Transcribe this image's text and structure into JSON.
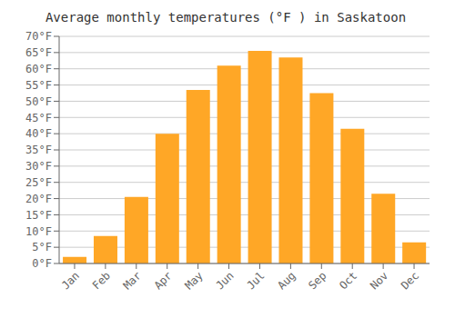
{
  "chart_data": {
    "type": "bar",
    "title": "Average monthly temperatures (°F ) in Saskatoon",
    "categories": [
      "Jan",
      "Feb",
      "Mar",
      "Apr",
      "May",
      "Jun",
      "Jul",
      "Aug",
      "Sep",
      "Oct",
      "Nov",
      "Dec"
    ],
    "values": [
      2,
      8.5,
      20.5,
      40,
      53.5,
      61,
      65.5,
      63.5,
      52.5,
      41.5,
      21.5,
      6.5
    ],
    "color": "#FFA726",
    "ylim": [
      0,
      70
    ],
    "yticks": [
      {
        "value": 0,
        "label": "0°F"
      },
      {
        "value": 5,
        "label": "5°F"
      },
      {
        "value": 10,
        "label": "10°F"
      },
      {
        "value": 15,
        "label": "15°F"
      },
      {
        "value": 20,
        "label": "20°F"
      },
      {
        "value": 25,
        "label": "25°F"
      },
      {
        "value": 30,
        "label": "30°F"
      },
      {
        "value": 35,
        "label": "35°F"
      },
      {
        "value": 40,
        "label": "40°F"
      },
      {
        "value": 45,
        "label": "45°F"
      },
      {
        "value": 50,
        "label": "50°F"
      },
      {
        "value": 55,
        "label": "55°F"
      },
      {
        "value": 60,
        "label": "60°F"
      },
      {
        "value": 65,
        "label": "65°F"
      },
      {
        "value": 70,
        "label": "70°F"
      }
    ],
    "grid": true
  }
}
